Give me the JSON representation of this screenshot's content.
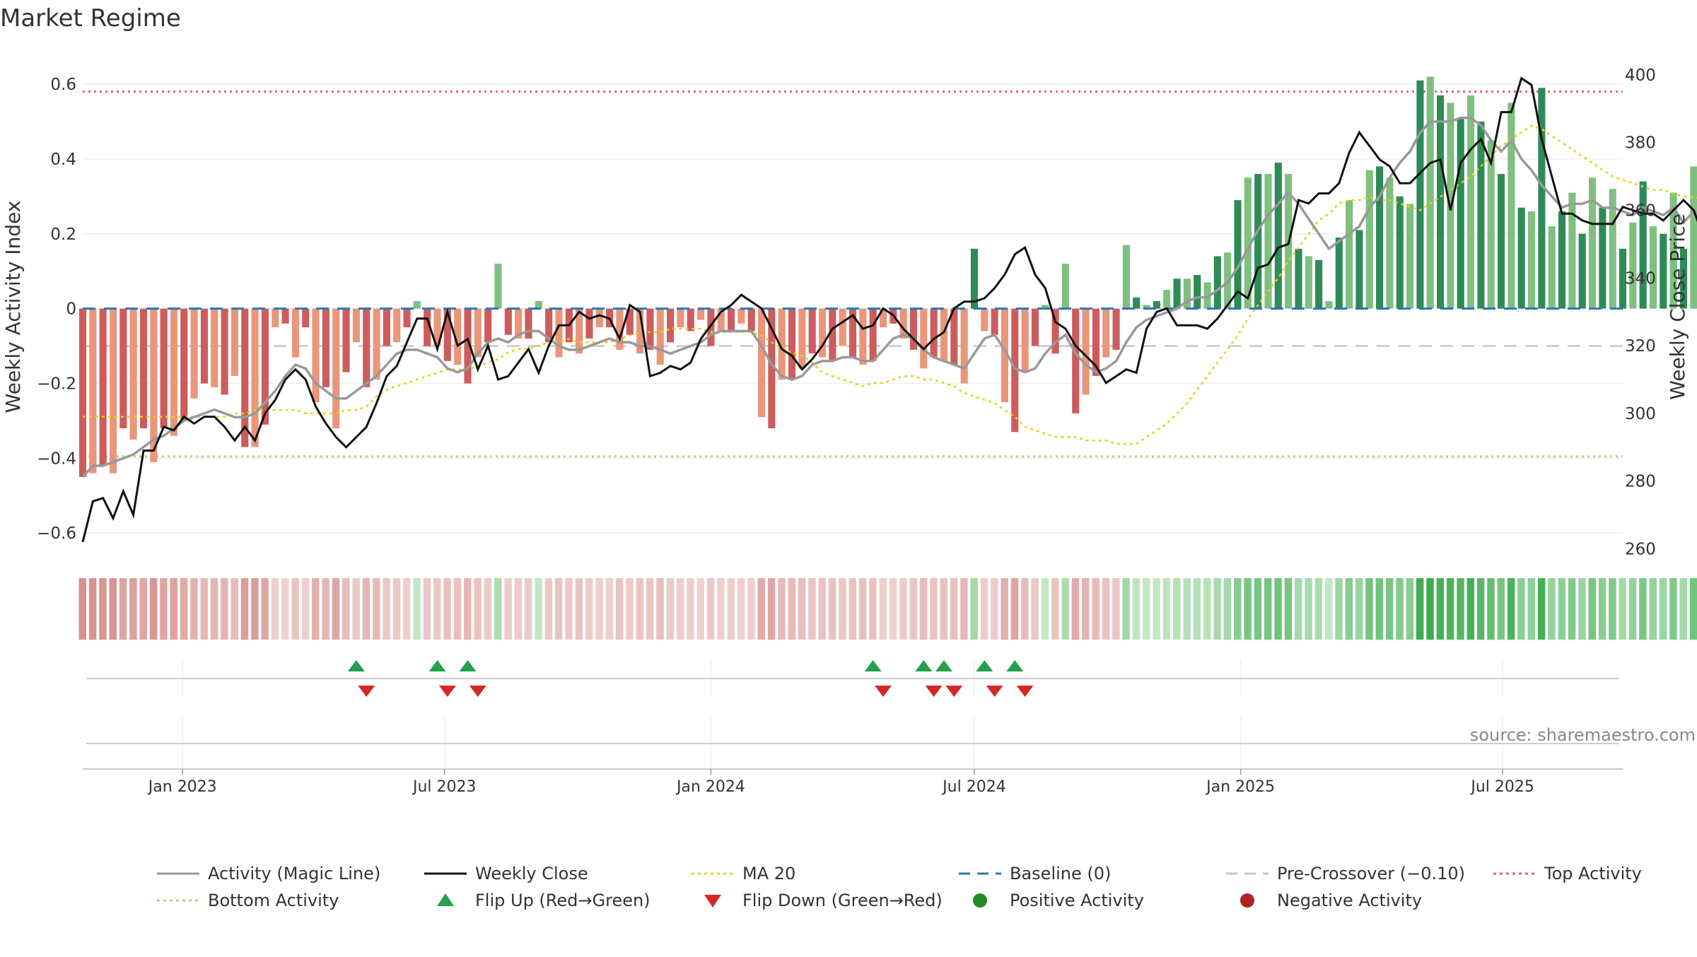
{
  "chart_data": {
    "type": "bar",
    "title": "Market Regime",
    "source": "source: sharemaestro.com",
    "y_left": {
      "label": "Weekly Activity Index",
      "range": [
        -0.66,
        0.67
      ],
      "ticks": [
        "0.6",
        "0.4",
        "0.2",
        "0",
        "−0.2",
        "−0.4",
        "−0.6"
      ],
      "tick_values": [
        0.6,
        0.4,
        0.2,
        0,
        -0.2,
        -0.4,
        -0.6
      ]
    },
    "y_right": {
      "label": "Weekly Close Price",
      "range": [
        258,
        405
      ],
      "ticks": [
        "400",
        "380",
        "360",
        "340",
        "320",
        "300",
        "280",
        "260"
      ],
      "tick_values": [
        400,
        380,
        360,
        340,
        320,
        300,
        280,
        260
      ]
    },
    "x_axis": {
      "start": "2022-10-24",
      "end": "2025-09-22",
      "ticks": [
        "Jan 2023",
        "Jul 2023",
        "Jan 2024",
        "Jul 2024",
        "Jan 2025",
        "Jul 2025"
      ],
      "tick_dates": [
        "2023-01-01",
        "2023-07-01",
        "2024-01-01",
        "2024-07-01",
        "2025-01-01",
        "2025-07-01"
      ]
    },
    "reference_lines": {
      "baseline": 0,
      "pre_crossover": -0.1,
      "top_activity": 0.58,
      "bottom_activity": -0.395
    },
    "activity": [
      -0.45,
      -0.44,
      -0.42,
      -0.44,
      -0.32,
      -0.35,
      -0.32,
      -0.41,
      -0.32,
      -0.34,
      -0.3,
      -0.24,
      -0.2,
      -0.21,
      -0.23,
      -0.18,
      -0.37,
      -0.37,
      -0.31,
      -0.05,
      -0.04,
      -0.13,
      -0.05,
      -0.25,
      -0.21,
      -0.32,
      -0.17,
      -0.09,
      -0.21,
      -0.19,
      -0.1,
      -0.09,
      -0.05,
      0.02,
      -0.1,
      -0.1,
      -0.14,
      -0.15,
      -0.2,
      -0.13,
      -0.09,
      0.12,
      -0.07,
      -0.08,
      -0.08,
      0.02,
      -0.09,
      -0.13,
      -0.09,
      -0.12,
      -0.08,
      -0.05,
      -0.05,
      -0.11,
      -0.07,
      -0.12,
      -0.11,
      -0.15,
      -0.09,
      -0.05,
      -0.06,
      -0.03,
      -0.1,
      -0.06,
      -0.06,
      -0.04,
      -0.06,
      -0.29,
      -0.32,
      -0.19,
      -0.19,
      -0.16,
      -0.12,
      -0.13,
      -0.14,
      -0.1,
      -0.13,
      -0.15,
      -0.14,
      -0.05,
      -0.04,
      -0.08,
      -0.11,
      -0.16,
      -0.13,
      -0.14,
      -0.15,
      -0.2,
      0.16,
      -0.06,
      -0.07,
      -0.25,
      -0.33,
      -0.17,
      -0.1,
      0.01,
      -0.12,
      0.12,
      -0.28,
      -0.23,
      -0.18,
      -0.13,
      -0.11,
      0.17,
      0.03,
      0.01,
      0.02,
      0.05,
      0.08,
      0.08,
      0.09,
      0.07,
      0.14,
      0.15,
      0.29,
      0.35,
      0.36,
      0.36,
      0.39,
      0.36,
      0.16,
      0.14,
      0.13,
      0.02,
      0.19,
      0.29,
      0.21,
      0.37,
      0.38,
      0.35,
      0.3,
      0.28,
      0.61,
      0.62,
      0.57,
      0.55,
      0.51,
      0.57,
      0.5,
      0.45,
      0.36,
      0.55,
      0.27,
      0.26,
      0.59,
      0.22,
      0.26,
      0.31,
      0.2,
      0.35,
      0.27,
      0.32,
      0.16,
      0.23,
      0.34,
      0.22,
      0.2,
      0.31,
      0.16,
      0.38,
      0.24,
      0.07,
      0.08,
      0.28,
      0.06,
      0.07,
      0.09,
      0.1,
      0.1
    ],
    "weekly_close": [
      262,
      274,
      275,
      269,
      277,
      270,
      289,
      289,
      296,
      295,
      299,
      297,
      299,
      299,
      296,
      292,
      296,
      292,
      300,
      304,
      310,
      313,
      310,
      302,
      297,
      293,
      290,
      293,
      296,
      303,
      311,
      314,
      321,
      328,
      328,
      319,
      330,
      320,
      322,
      313,
      320,
      310,
      311,
      315,
      319,
      312,
      320,
      326,
      326,
      330,
      328,
      329,
      328,
      322,
      332,
      330,
      311,
      312,
      314,
      313,
      315,
      322,
      326,
      330,
      332,
      335,
      333,
      331,
      325,
      319,
      317,
      313,
      316,
      320,
      325,
      327,
      329,
      325,
      326,
      331,
      329,
      325,
      322,
      319,
      322,
      324,
      331,
      333,
      333,
      334,
      337,
      341,
      347,
      349,
      341,
      337,
      327,
      325,
      320,
      317,
      314,
      309,
      311,
      313,
      312,
      325,
      330,
      331,
      326,
      326,
      326,
      325,
      328,
      332,
      336,
      334,
      343,
      344,
      349,
      350,
      363,
      362,
      365,
      365,
      368,
      377,
      383,
      379,
      375,
      373,
      368,
      368,
      371,
      374,
      375,
      360,
      374,
      378,
      381,
      374,
      389,
      389,
      399,
      397,
      381,
      370,
      359,
      359,
      357,
      356,
      356,
      356,
      361,
      360,
      359,
      359,
      357,
      360,
      363,
      360,
      352,
      357,
      361,
      356,
      365,
      364,
      363,
      366,
      368,
      369,
      368,
      365,
      364,
      362,
      360,
      357,
      358,
      360,
      364,
      360,
      352
    ],
    "magic_line": [
      -0.45,
      -0.42,
      -0.42,
      -0.41,
      -0.4,
      -0.39,
      -0.37,
      -0.35,
      -0.34,
      -0.32,
      -0.3,
      -0.29,
      -0.28,
      -0.27,
      -0.28,
      -0.29,
      -0.29,
      -0.28,
      -0.25,
      -0.22,
      -0.18,
      -0.15,
      -0.16,
      -0.2,
      -0.22,
      -0.24,
      -0.24,
      -0.22,
      -0.2,
      -0.18,
      -0.15,
      -0.12,
      -0.11,
      -0.11,
      -0.12,
      -0.13,
      -0.16,
      -0.17,
      -0.16,
      -0.12,
      -0.09,
      -0.08,
      -0.09,
      -0.07,
      -0.06,
      -0.06,
      -0.08,
      -0.1,
      -0.11,
      -0.11,
      -0.1,
      -0.09,
      -0.08,
      -0.09,
      -0.09,
      -0.1,
      -0.1,
      -0.11,
      -0.12,
      -0.11,
      -0.1,
      -0.09,
      -0.07,
      -0.06,
      -0.06,
      -0.06,
      -0.06,
      -0.1,
      -0.15,
      -0.18,
      -0.19,
      -0.18,
      -0.15,
      -0.14,
      -0.14,
      -0.13,
      -0.13,
      -0.14,
      -0.14,
      -0.11,
      -0.08,
      -0.07,
      -0.08,
      -0.11,
      -0.13,
      -0.14,
      -0.15,
      -0.16,
      -0.12,
      -0.08,
      -0.07,
      -0.11,
      -0.16,
      -0.17,
      -0.16,
      -0.12,
      -0.09,
      -0.07,
      -0.12,
      -0.15,
      -0.17,
      -0.16,
      -0.14,
      -0.09,
      -0.05,
      -0.03,
      -0.02,
      -0.01,
      0.0,
      0.02,
      0.03,
      0.03,
      0.05,
      0.07,
      0.11,
      0.16,
      0.21,
      0.25,
      0.28,
      0.31,
      0.28,
      0.24,
      0.2,
      0.16,
      0.18,
      0.2,
      0.22,
      0.27,
      0.3,
      0.35,
      0.39,
      0.42,
      0.47,
      0.5,
      0.5,
      0.5,
      0.51,
      0.51,
      0.49,
      0.45,
      0.42,
      0.45,
      0.4,
      0.37,
      0.33,
      0.3,
      0.27,
      0.28,
      0.28,
      0.29,
      0.27,
      0.27,
      0.26,
      0.25,
      0.27,
      0.26,
      0.25,
      0.27,
      0.23,
      0.26,
      0.24,
      0.2,
      0.17,
      0.16,
      0.14,
      0.13,
      0.13,
      0.12,
      0.13
    ],
    "ma20_price": [
      299,
      299,
      299,
      299,
      299,
      299,
      299,
      299,
      299,
      299,
      299,
      299,
      299,
      299,
      299,
      300,
      300,
      301,
      301,
      301,
      301,
      301,
      300,
      300,
      300,
      300,
      301,
      301,
      302,
      305,
      307,
      308,
      309,
      310,
      311,
      312,
      313,
      313,
      313,
      314,
      315,
      316,
      318,
      319,
      319,
      320,
      321,
      321,
      322,
      321,
      321,
      321,
      321,
      322,
      323,
      324,
      324,
      324,
      325,
      325,
      325,
      325,
      324,
      324,
      324,
      324,
      324,
      323,
      321,
      319,
      318,
      317,
      315,
      312,
      311,
      310,
      309,
      308,
      309,
      309,
      310,
      311,
      311,
      310,
      310,
      309,
      308,
      306,
      305,
      304,
      303,
      301,
      299,
      296,
      295,
      294,
      293,
      293,
      293,
      292,
      292,
      292,
      291,
      291,
      291,
      293,
      295,
      297,
      300,
      303,
      307,
      311,
      315,
      319,
      323,
      328,
      332,
      336,
      340,
      345,
      349,
      353,
      357,
      359,
      362,
      363,
      363,
      364,
      363,
      363,
      362,
      361,
      360,
      362,
      364,
      366,
      368,
      370,
      373,
      376,
      379,
      381,
      383,
      385,
      384,
      382,
      380,
      378,
      376,
      374,
      372,
      370,
      369,
      368,
      367,
      366,
      366,
      365,
      364,
      364,
      363,
      362,
      362,
      361,
      360,
      359,
      358,
      358,
      357,
      357,
      358,
      359,
      360,
      361,
      362
    ],
    "regime_strip": [
      -0.45,
      -0.44,
      -0.42,
      -0.44,
      -0.32,
      -0.35,
      -0.32,
      -0.41,
      -0.32,
      -0.34,
      -0.3,
      -0.24,
      -0.2,
      -0.21,
      -0.23,
      -0.18,
      -0.37,
      -0.37,
      -0.31,
      -0.05,
      -0.04,
      -0.13,
      -0.05,
      -0.25,
      -0.21,
      -0.32,
      -0.17,
      -0.09,
      -0.21,
      -0.19,
      -0.1,
      -0.09,
      -0.05,
      0.02,
      -0.1,
      -0.1,
      -0.14,
      -0.15,
      -0.2,
      -0.13,
      -0.09,
      0.12,
      -0.07,
      -0.08,
      -0.08,
      0.02,
      -0.09,
      -0.13,
      -0.09,
      -0.12,
      -0.08,
      -0.05,
      -0.05,
      -0.11,
      -0.07,
      -0.12,
      -0.11,
      -0.15,
      -0.09,
      -0.05,
      -0.06,
      -0.03,
      -0.1,
      -0.06,
      -0.06,
      -0.04,
      -0.06,
      -0.29,
      -0.32,
      -0.19,
      -0.19,
      -0.16,
      -0.12,
      -0.13,
      -0.14,
      -0.1,
      -0.13,
      -0.15,
      -0.14,
      -0.05,
      -0.04,
      -0.08,
      -0.11,
      -0.16,
      -0.13,
      -0.14,
      -0.15,
      -0.2,
      0.16,
      -0.06,
      -0.07,
      -0.25,
      -0.33,
      -0.17,
      -0.1,
      0.01,
      -0.12,
      0.12,
      -0.28,
      -0.23,
      -0.18,
      -0.13,
      -0.11,
      0.17,
      0.03,
      0.01,
      0.02,
      0.05,
      0.08,
      0.08,
      0.09,
      0.07,
      0.14,
      0.15,
      0.29,
      0.35,
      0.36,
      0.36,
      0.39,
      0.36,
      0.16,
      0.14,
      0.13,
      0.02,
      0.19,
      0.29,
      0.21,
      0.37,
      0.38,
      0.35,
      0.3,
      0.28,
      0.61,
      0.62,
      0.57,
      0.55,
      0.51,
      0.57,
      0.5,
      0.45,
      0.36,
      0.55,
      0.27,
      0.26,
      0.59,
      0.22,
      0.26,
      0.31,
      0.2,
      0.35,
      0.27,
      0.32,
      0.16,
      0.23,
      0.34,
      0.22,
      0.2,
      0.31,
      0.16,
      0.38,
      0.24,
      0.07,
      0.08,
      0.28,
      0.06,
      0.07,
      0.09,
      0.1,
      0.1
    ],
    "flip_up_dates": [
      "2023-05-01",
      "2023-06-26",
      "2023-07-17",
      "2024-04-22",
      "2024-05-27",
      "2024-06-10",
      "2024-07-08",
      "2024-07-29"
    ],
    "flip_down_dates": [
      "2023-05-08",
      "2023-07-03",
      "2023-07-24",
      "2024-04-29",
      "2024-06-03",
      "2024-06-17",
      "2024-07-15",
      "2024-08-05"
    ],
    "legend": [
      {
        "label": "Activity (Magic Line)",
        "kind": "line",
        "color": "#999999",
        "dash": "solid"
      },
      {
        "label": "Weekly Close",
        "kind": "line",
        "color": "#111111",
        "dash": "solid"
      },
      {
        "label": "MA 20",
        "kind": "line",
        "color": "#e6d11f",
        "dash": "dot"
      },
      {
        "label": "Baseline (0)",
        "kind": "line",
        "color": "#2878b5",
        "dash": "dash"
      },
      {
        "label": "Pre-Crossover (−0.10)",
        "kind": "line",
        "color": "#c8c8c8",
        "dash": "dash"
      },
      {
        "label": "Top Activity",
        "kind": "line",
        "color": "#e8607a",
        "dash": "dot"
      },
      {
        "label": "Bottom Activity",
        "kind": "line",
        "color": "#a8d97a",
        "dash": "dot"
      },
      {
        "label": "Flip Up (Red→Green)",
        "kind": "tri-up",
        "color": "#22a04b"
      },
      {
        "label": "Flip Down (Green→Red)",
        "kind": "tri-down",
        "color": "#d62728"
      },
      {
        "label": "Positive Activity",
        "kind": "circle",
        "color": "#228b22"
      },
      {
        "label": "Negative Activity",
        "kind": "circle",
        "color": "#b22222"
      }
    ],
    "colors": {
      "bar_pos_strong": "#2e8b57",
      "bar_pos_light": "#7fbf7f",
      "bar_neg_strong": "#cd5c5c",
      "bar_neg_light": "#e9967a",
      "close_line": "#111111",
      "magic_line": "#999999",
      "ma20": "#e6d11f",
      "baseline": "#2878b5",
      "pre_crossover": "#c8c8c8",
      "top": "#e8607a",
      "bottom": "#a8d97a",
      "flip_up": "#22a04b",
      "flip_down": "#d62728"
    }
  }
}
